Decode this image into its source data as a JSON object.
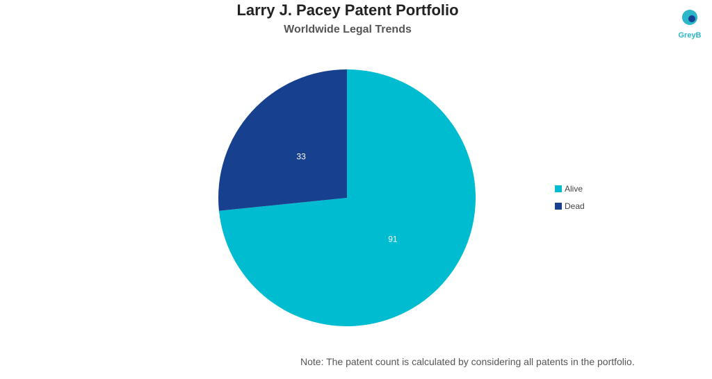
{
  "chart_data": {
    "type": "pie",
    "title": "Larry J. Pacey Patent Portfolio",
    "subtitle": "Worldwide Legal Trends",
    "slices": [
      {
        "label": "Alive",
        "value": 91,
        "color": "#00bcd0"
      },
      {
        "label": "Dead",
        "value": 33,
        "color": "#17408f"
      }
    ],
    "legend_placement": "right"
  },
  "logo": "GreyB",
  "note": "Note: The patent count is calculated by considering all patents in the portfolio."
}
